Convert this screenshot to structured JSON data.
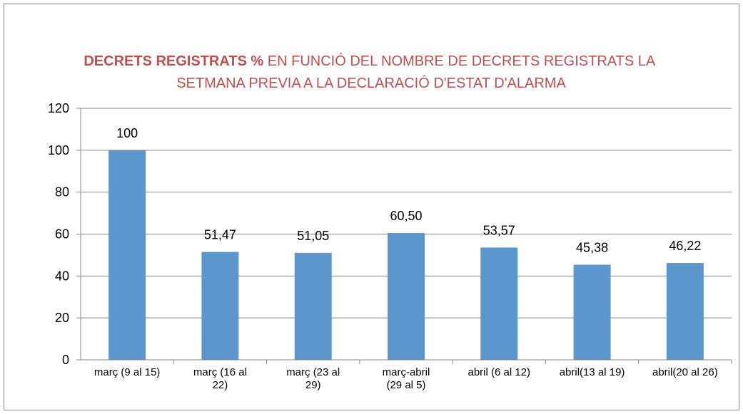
{
  "chart_data": {
    "type": "bar",
    "title": [
      "DECRETS REGISTRATS %",
      "EN FUNCIÓ DEL NOMBRE DE DECRETS REGISTRATS LA",
      "SETMANA PREVIA A LA DECLARACIÓ D'ESTAT D'ALARMA"
    ],
    "categories": [
      "març (9 al 15)",
      "març (16 al\n22)",
      "març (23 al\n29)",
      "març-abril\n(29 al 5)",
      "abril (6 al 12)",
      "abril(13 al 19)",
      "abril(20 al 26)"
    ],
    "values": [
      100,
      51.47,
      51.05,
      60.5,
      53.57,
      45.38,
      46.22
    ],
    "value_labels": [
      "100",
      "51,47",
      "51,05",
      "60,50",
      "53,57",
      "45,38",
      "46,22"
    ],
    "color": "#5b96cc",
    "ylim": [
      0,
      120
    ],
    "yticks": [
      0,
      20,
      40,
      60,
      80,
      100,
      120
    ],
    "grid": true
  }
}
